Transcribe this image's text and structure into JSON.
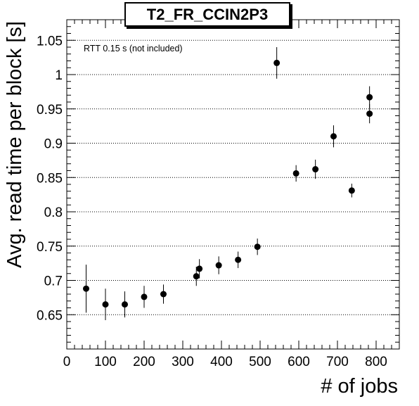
{
  "chart_data": {
    "type": "scatter",
    "title": "T2_FR_CCIN2P3",
    "xlabel": "# of jobs",
    "ylabel": "Avg. read time per block [s]",
    "annotation": "RTT 0.15 s (not included)",
    "xlim": [
      0,
      860
    ],
    "ylim": [
      0.6,
      1.08
    ],
    "x_ticks": [
      0,
      100,
      200,
      300,
      400,
      500,
      600,
      700,
      800
    ],
    "y_ticks": [
      0.65,
      0.7,
      0.75,
      0.8,
      0.85,
      0.9,
      0.95,
      1,
      1.05
    ],
    "grid": "y",
    "series": [
      {
        "points": [
          {
            "x": 50,
            "y": 0.688,
            "err": 0.035
          },
          {
            "x": 100,
            "y": 0.665,
            "err": 0.023
          },
          {
            "x": 150,
            "y": 0.665,
            "err": 0.019
          },
          {
            "x": 200,
            "y": 0.676,
            "err": 0.016
          },
          {
            "x": 250,
            "y": 0.68,
            "err": 0.014
          },
          {
            "x": 335,
            "y": 0.706,
            "err": 0.014
          },
          {
            "x": 343,
            "y": 0.717,
            "err": 0.014
          },
          {
            "x": 393,
            "y": 0.722,
            "err": 0.013
          },
          {
            "x": 443,
            "y": 0.73,
            "err": 0.012
          },
          {
            "x": 493,
            "y": 0.749,
            "err": 0.012
          },
          {
            "x": 543,
            "y": 1.017,
            "err": 0.023
          },
          {
            "x": 593,
            "y": 0.856,
            "err": 0.012
          },
          {
            "x": 643,
            "y": 0.862,
            "err": 0.014
          },
          {
            "x": 690,
            "y": 0.91,
            "err": 0.016
          },
          {
            "x": 737,
            "y": 0.831,
            "err": 0.01
          },
          {
            "x": 783,
            "y": 0.967,
            "err": 0.016
          },
          {
            "x": 783,
            "y": 0.943,
            "err": 0.014
          }
        ]
      }
    ]
  }
}
